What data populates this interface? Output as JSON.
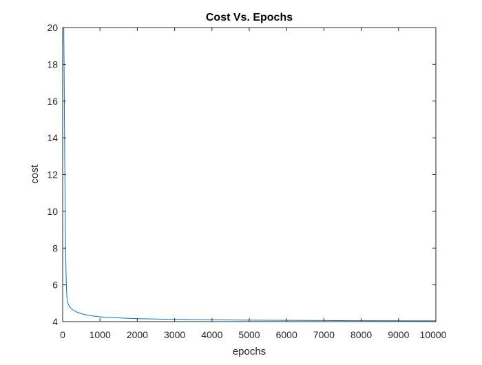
{
  "chart_data": {
    "type": "line",
    "title": "Cost Vs. Epochs",
    "xlabel": "epochs",
    "ylabel": "cost",
    "xlim": [
      0,
      10000
    ],
    "ylim": [
      4,
      20
    ],
    "xticks": [
      0,
      1000,
      2000,
      3000,
      4000,
      5000,
      6000,
      7000,
      8000,
      9000,
      10000
    ],
    "yticks": [
      4,
      6,
      8,
      10,
      12,
      14,
      16,
      18,
      20
    ],
    "grid": false,
    "legend": "none",
    "series": [
      {
        "color": "#0072BD",
        "x": [
          30,
          40,
          50,
          60,
          70,
          80,
          90,
          100,
          110,
          120,
          130,
          150,
          175,
          200,
          250,
          300,
          400,
          500,
          600,
          800,
          1000,
          1200,
          1500,
          2000,
          2500,
          3000,
          4000,
          5000,
          6000,
          7000,
          8000,
          9000,
          10000
        ],
        "y": [
          20,
          17.5,
          14.5,
          11.8,
          9.6,
          7.9,
          6.7,
          5.9,
          5.45,
          5.25,
          5.1,
          4.95,
          4.85,
          4.78,
          4.68,
          4.6,
          4.5,
          4.43,
          4.38,
          4.31,
          4.26,
          4.23,
          4.2,
          4.16,
          4.14,
          4.12,
          4.1,
          4.08,
          4.07,
          4.06,
          4.05,
          4.045,
          4.04
        ]
      }
    ]
  }
}
